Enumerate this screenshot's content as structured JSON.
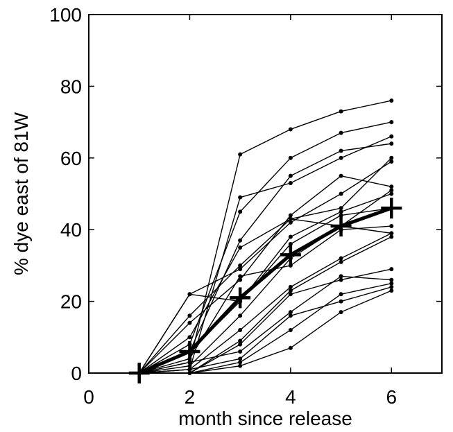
{
  "chart_data": {
    "type": "line",
    "title": "",
    "xlabel": "month since release",
    "ylabel": "% dye east of 81W",
    "xlim": [
      0,
      7
    ],
    "ylim": [
      0,
      100
    ],
    "xticks": [
      0,
      2,
      4,
      6
    ],
    "yticks": [
      0,
      20,
      40,
      60,
      80,
      100
    ],
    "grid": false,
    "legend": "none",
    "x": [
      1,
      2,
      3,
      4,
      5,
      6
    ],
    "series": [
      {
        "values": [
          0,
          3,
          61,
          68,
          73,
          76
        ]
      },
      {
        "values": [
          0,
          1,
          49,
          53,
          60,
          66
        ]
      },
      {
        "values": [
          0,
          8,
          45,
          60,
          67,
          70
        ]
      },
      {
        "values": [
          0,
          6,
          37,
          55,
          62,
          64
        ]
      },
      {
        "values": [
          0,
          22,
          29,
          42,
          50,
          59
        ]
      },
      {
        "values": [
          0,
          16,
          30,
          43,
          46,
          60
        ]
      },
      {
        "values": [
          0,
          14,
          26,
          44,
          55,
          52
        ]
      },
      {
        "values": [
          0,
          10,
          35,
          43,
          41,
          51
        ]
      },
      {
        "values": [
          0,
          6,
          20,
          38,
          45,
          50
        ]
      },
      {
        "values": [
          0,
          22,
          20,
          36,
          44,
          46
        ]
      },
      {
        "values": [
          0,
          4,
          27,
          30,
          40,
          41
        ]
      },
      {
        "values": [
          0,
          2,
          16,
          32,
          41,
          39
        ]
      },
      {
        "values": [
          0,
          1,
          12,
          24,
          32,
          39
        ]
      },
      {
        "values": [
          0,
          0,
          9,
          23,
          31,
          38
        ]
      },
      {
        "values": [
          0,
          0,
          8,
          22,
          26,
          29
        ]
      },
      {
        "values": [
          0,
          3,
          6,
          17,
          27,
          26
        ]
      },
      {
        "values": [
          0,
          0,
          3,
          12,
          22,
          25
        ]
      },
      {
        "values": [
          0,
          1,
          4,
          16,
          20,
          24
        ]
      },
      {
        "values": [
          0,
          0,
          2,
          7,
          17,
          23
        ]
      }
    ],
    "mean": {
      "values": [
        0,
        6,
        21,
        33,
        41,
        46
      ]
    }
  }
}
